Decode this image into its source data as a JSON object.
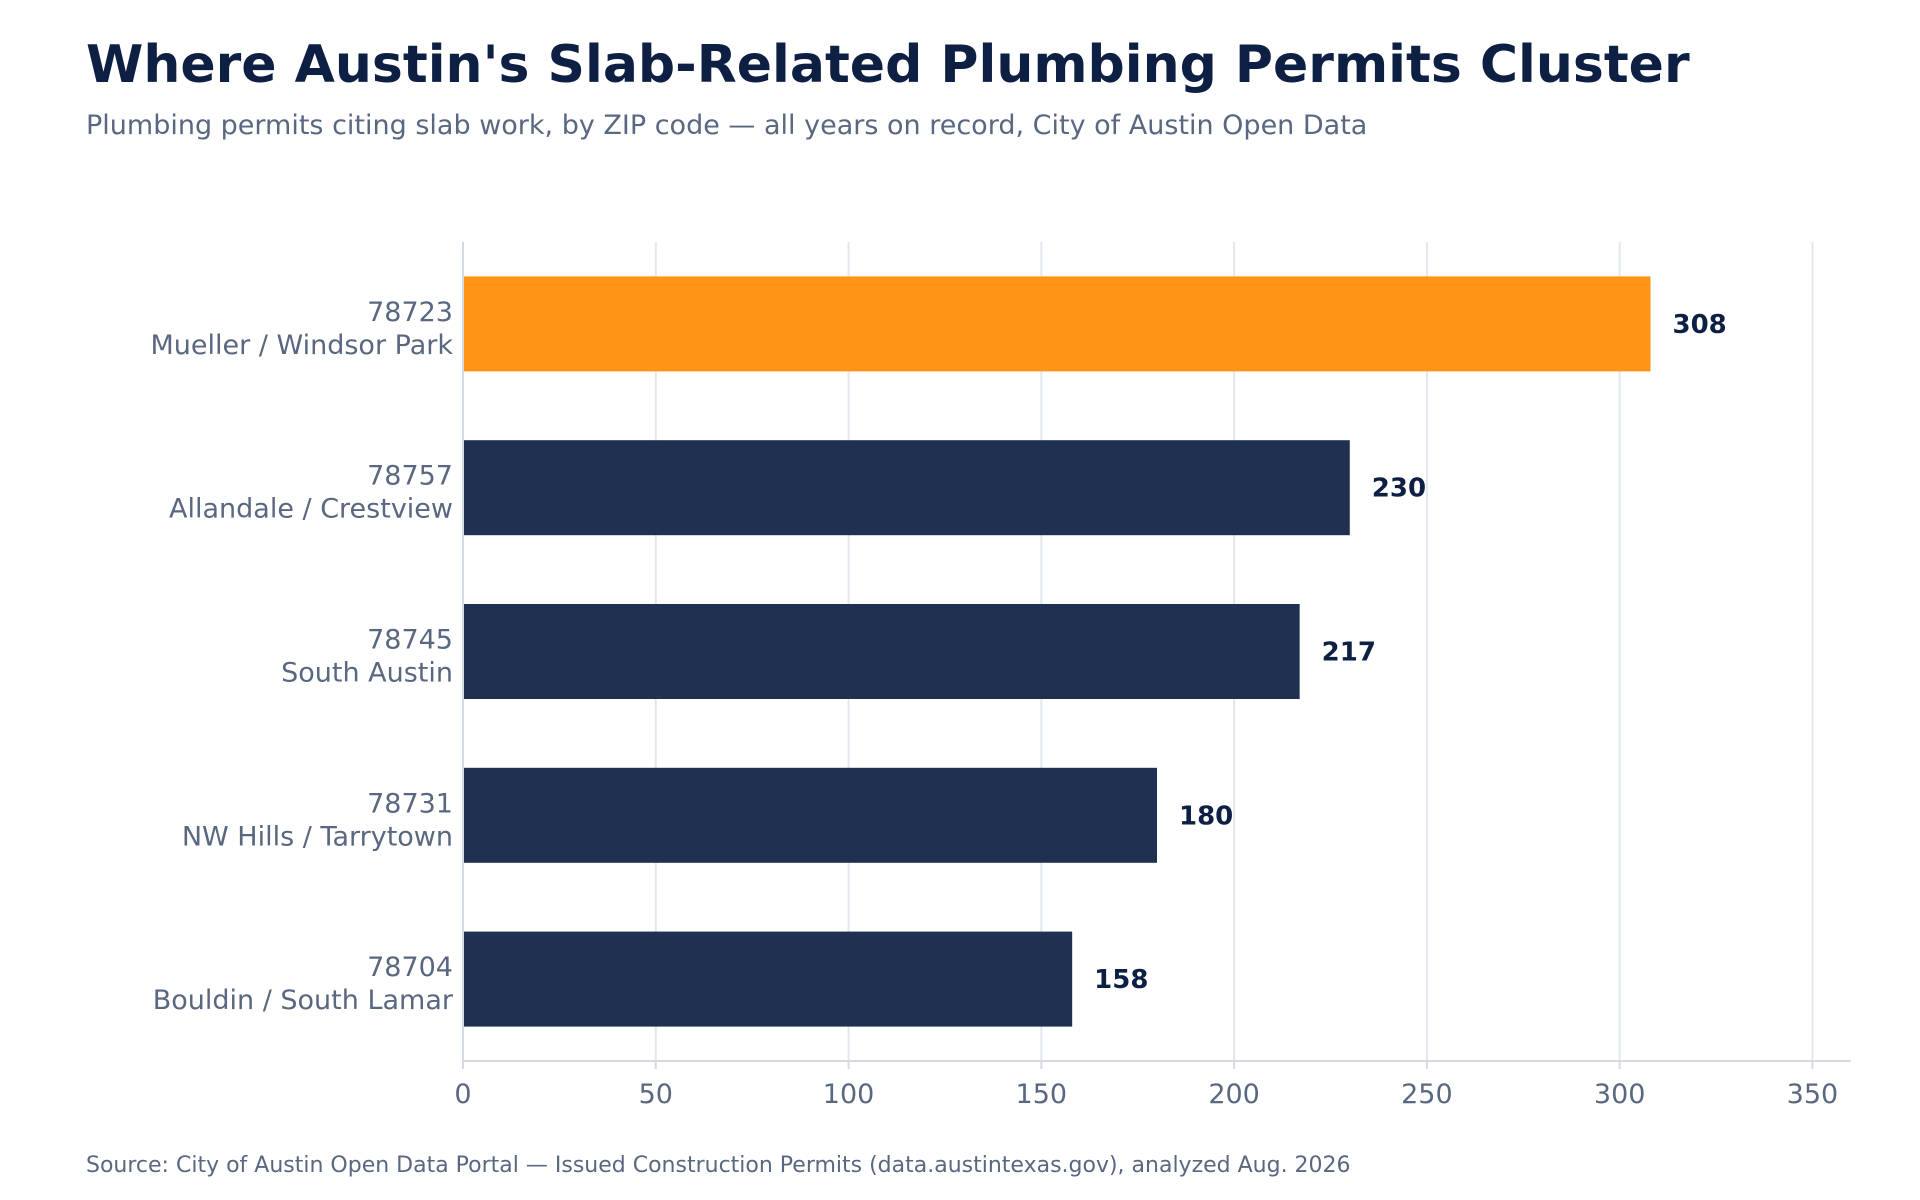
{
  "header": {
    "title": "Where Austin's Slab-Related Plumbing Permits Cluster",
    "subtitle": "Plumbing permits citing slab work, by ZIP code — all years on record, City of Austin Open Data"
  },
  "footer": {
    "source": "Source: City of Austin Open Data Portal — Issued Construction Permits (data.austintexas.gov), analyzed Aug. 2026"
  },
  "chart_data": {
    "type": "bar",
    "orientation": "horizontal",
    "title": "Where Austin's Slab-Related Plumbing Permits Cluster",
    "subtitle": "Plumbing permits citing slab work, by ZIP code — all years on record, City of Austin Open Data",
    "xlabel": "",
    "ylabel": "",
    "categories": [
      {
        "zip": "78723",
        "name": "Mueller / Windsor Park"
      },
      {
        "zip": "78757",
        "name": "Allandale / Crestview"
      },
      {
        "zip": "78745",
        "name": "South Austin"
      },
      {
        "zip": "78731",
        "name": "NW Hills / Tarrytown"
      },
      {
        "zip": "78704",
        "name": "Bouldin / South Lamar"
      }
    ],
    "values": [
      308,
      230,
      217,
      180,
      158
    ],
    "xlim": [
      0,
      360
    ],
    "xticks": [
      0,
      50,
      100,
      150,
      200,
      250,
      300,
      350
    ],
    "grid": "vertical",
    "legend": "none",
    "highlight_index": 0,
    "colors": {
      "highlight": "#ff9417",
      "bar": "#1f3050",
      "value_label": "#0e1f44",
      "tick_label": "#5a6780",
      "grid": "#e3e7ef",
      "axis": "#d5dae4"
    }
  }
}
